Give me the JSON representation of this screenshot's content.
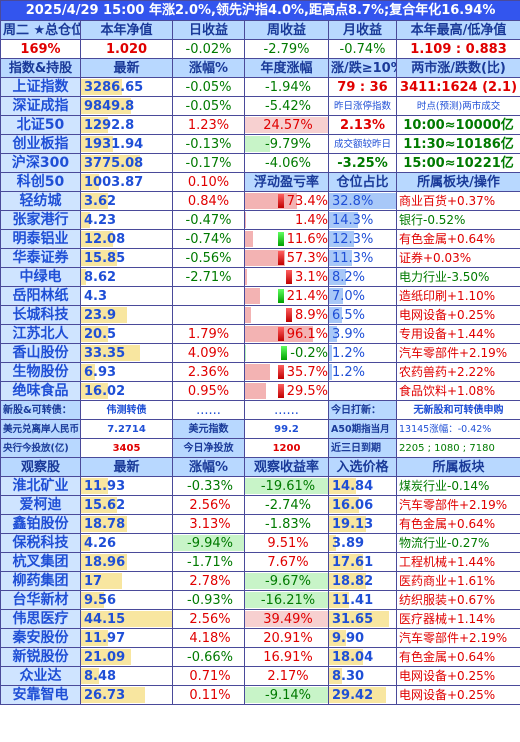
{
  "title": "2025/4/29 15:00 年涨2.0%,领先沪指4.0%,距高点8.7%;复合年化16.94%",
  "summary": {
    "headers": [
      "周二 ★总仓位",
      "本年净值",
      "日收益",
      "周收益",
      "月收益",
      "本年最高/低净值"
    ],
    "values": [
      "169%",
      "1.020",
      "-0.02%",
      "-2.79%",
      "-0.74%",
      "1.109 : 0.883"
    ]
  },
  "index_section": {
    "headers": [
      "指数&持股",
      "最新",
      "涨幅%",
      "年度涨幅",
      "涨/跌≥10%",
      "两市涨/跌数(比)"
    ],
    "rows": [
      {
        "name": "上证指数",
        "price": "3286.65",
        "chg": "-0.05%",
        "year": "-1.94%",
        "extra1": "79 : 36",
        "extra2": "3411:1624 (2.1)"
      },
      {
        "name": "深证成指",
        "price": "9849.8",
        "chg": "-0.05%",
        "year": "-5.42%",
        "extra1": "昨日涨停指数",
        "extra2": "时点(预测)两市成交"
      },
      {
        "name": "北证50",
        "price": "1292.8",
        "chg": "1.23%",
        "year": "24.57%",
        "extra1": "2.13%",
        "extra2": "10:00≈10000亿"
      },
      {
        "name": "创业板指",
        "price": "1931.94",
        "chg": "-0.13%",
        "year": "-9.79%",
        "extra1": "成交额较昨日",
        "extra2": "11:30≈10186亿"
      },
      {
        "name": "沪深300",
        "price": "3775.08",
        "chg": "-0.17%",
        "year": "-4.06%",
        "extra1": "-3.25%",
        "extra2": "15:00≈10221亿"
      }
    ]
  },
  "holdings_header": {
    "name": "科创50",
    "price": "1003.87",
    "chg": "0.10%",
    "col4": "浮动盈亏率",
    "col5": "仓位占比",
    "col6": "所属板块/操作"
  },
  "holdings": [
    {
      "name": "轻纺城",
      "price": "3.62",
      "chg": "0.84%",
      "pnl": "73.4%",
      "pos": "32.8%",
      "sector": "商业百货+0.37%"
    },
    {
      "name": "张家港行",
      "price": "4.23",
      "chg": "-0.47%",
      "pnl": "1.4%",
      "pos": "14.3%",
      "sector": "银行-0.52%"
    },
    {
      "name": "明泰铝业",
      "price": "12.08",
      "chg": "-0.74%",
      "pnl": "11.6%",
      "pos": "12.3%",
      "sector": "有色金属+0.64%"
    },
    {
      "name": "华泰证券",
      "price": "15.85",
      "chg": "-0.56%",
      "pnl": "57.3%",
      "pos": "11.3%",
      "sector": "证券+0.03%"
    },
    {
      "name": "中绿电",
      "price": "8.62",
      "chg": "-2.71%",
      "pnl": "3.1%",
      "pos": "8.2%",
      "sector": "电力行业-3.50%"
    },
    {
      "name": "岳阳林纸",
      "price": "4.3",
      "chg": "",
      "pnl": "21.4%",
      "pos": "7.0%",
      "sector": "造纸印刷+1.10%"
    },
    {
      "name": "长城科技",
      "price": "23.9",
      "chg": "",
      "pnl": "8.9%",
      "pos": "6.5%",
      "sector": "电网设备+0.25%"
    },
    {
      "name": "江苏北人",
      "price": "20.5",
      "chg": "1.79%",
      "pnl": "96.1%",
      "pos": "3.9%",
      "sector": "专用设备+1.44%"
    },
    {
      "name": "香山股份",
      "price": "33.35",
      "chg": "4.09%",
      "pnl": "-0.2%",
      "pos": "1.2%",
      "sector": "汽车零部件+2.19%"
    },
    {
      "name": "生物股份",
      "price": "6.93",
      "chg": "2.36%",
      "pnl": "35.7%",
      "pos": "1.2%",
      "sector": "农药兽药+2.22%"
    },
    {
      "name": "绝味食品",
      "price": "16.02",
      "chg": "0.95%",
      "pnl": "29.5%",
      "pos": "",
      "sector": "食品饮料+1.08%"
    }
  ],
  "misc": {
    "row1": [
      "新股&可转债：",
      "伟测转债",
      "......",
      "......",
      "今日打新：",
      "无新股和可转债申购"
    ],
    "row2": [
      "美元兑离岸人民币",
      "7.2714",
      "美元指数",
      "99.2",
      "A50期指当月",
      "13145涨幅：-0.42%"
    ],
    "row3": [
      "央行今投放(亿)",
      "3405",
      "今日净投放",
      "1200",
      "近三日到期",
      "2205 ; 1080 ; 7180"
    ]
  },
  "watch_header": [
    "观察股",
    "最新",
    "涨幅%",
    "观察收益率",
    "入选价格",
    "所属板块"
  ],
  "watchlist": [
    {
      "name": "淮北矿业",
      "price": "11.93",
      "chg": "-0.33%",
      "ret": "-19.61%",
      "entry": "14.84",
      "sector": "煤炭行业-0.14%"
    },
    {
      "name": "爱柯迪",
      "price": "15.62",
      "chg": "2.56%",
      "ret": "-2.74%",
      "entry": "16.06",
      "sector": "汽车零部件+2.19%"
    },
    {
      "name": "鑫铂股份",
      "price": "18.78",
      "chg": "3.13%",
      "ret": "-1.83%",
      "entry": "19.13",
      "sector": "有色金属+0.64%"
    },
    {
      "name": "保税科技",
      "price": "4.26",
      "chg": "-9.94%",
      "ret": "9.51%",
      "entry": "3.89",
      "sector": "物流行业-0.27%"
    },
    {
      "name": "杭叉集团",
      "price": "18.96",
      "chg": "-1.71%",
      "ret": "7.67%",
      "entry": "17.61",
      "sector": "工程机械+1.44%"
    },
    {
      "name": "柳药集团",
      "price": "17",
      "chg": "2.78%",
      "ret": "-9.67%",
      "entry": "18.82",
      "sector": "医药商业+1.61%"
    },
    {
      "name": "台华新材",
      "price": "9.56",
      "chg": "-0.93%",
      "ret": "-16.21%",
      "entry": "11.41",
      "sector": "纺织服装+0.67%"
    },
    {
      "name": "伟思医疗",
      "price": "44.15",
      "chg": "2.56%",
      "ret": "39.49%",
      "entry": "31.65",
      "sector": "医疗器械+1.14%"
    },
    {
      "name": "秦安股份",
      "price": "11.97",
      "chg": "4.18%",
      "ret": "20.91%",
      "entry": "9.90",
      "sector": "汽车零部件+2.19%"
    },
    {
      "name": "新锐股份",
      "price": "21.09",
      "chg": "-0.66%",
      "ret": "16.91%",
      "entry": "18.04",
      "sector": "有色金属+0.64%"
    },
    {
      "name": "众业达",
      "price": "8.48",
      "chg": "0.71%",
      "ret": "2.17%",
      "entry": "8.30",
      "sector": "电网设备+0.25%"
    },
    {
      "name": "安靠智电",
      "price": "26.73",
      "chg": "0.11%",
      "ret": "-9.14%",
      "entry": "29.42",
      "sector": "电网设备+0.25%"
    }
  ],
  "colors": {
    "up": "#e00000",
    "down": "#007a00",
    "accent": "#3355ee"
  }
}
